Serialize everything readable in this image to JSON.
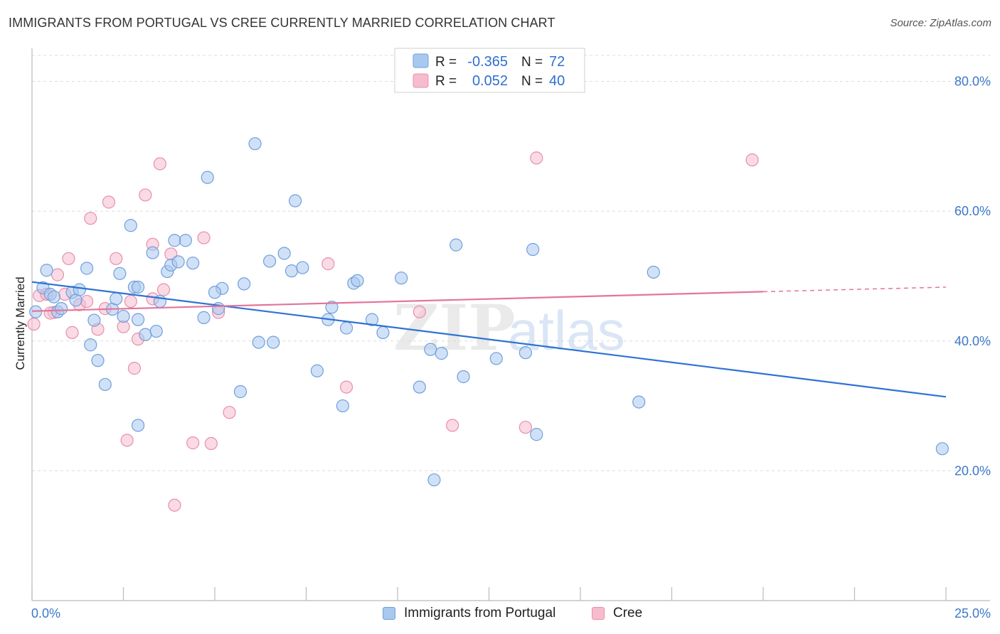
{
  "header": {
    "title": "IMMIGRANTS FROM PORTUGAL VS CREE CURRENTLY MARRIED CORRELATION CHART",
    "source": "Source: ZipAtlas.com"
  },
  "watermark": {
    "part1": "ZIP",
    "part2": "atlas"
  },
  "colors": {
    "blue_fill": "#a9c8f0",
    "blue_stroke": "#6f9fdc",
    "blue_line": "#2f72d4",
    "pink_fill": "#f6bccd",
    "pink_stroke": "#e88fab",
    "pink_line": "#e4749a",
    "tick_text": "#3d78c8",
    "grid": "#dcdcdc"
  },
  "legend": {
    "r_label": "R =",
    "n_label": "N =",
    "rows": [
      {
        "r": "-0.365",
        "n": "72"
      },
      {
        "r": "0.052",
        "n": "40"
      }
    ]
  },
  "bottom_legend": [
    "Immigrants from Portugal",
    "Cree"
  ],
  "chart_data": {
    "type": "scatter",
    "title": "IMMIGRANTS FROM PORTUGAL VS CREE CURRENTLY MARRIED CORRELATION CHART",
    "xlabel": "",
    "ylabel": "Currently Married",
    "xlim": [
      0,
      25
    ],
    "ylim": [
      0,
      84
    ],
    "x_tick_labels": [
      "0.0%",
      "25.0%"
    ],
    "y_ticks": [
      20,
      40,
      60,
      80
    ],
    "y_tick_labels": [
      "20.0%",
      "40.0%",
      "60.0%",
      "80.0%"
    ],
    "grid": true,
    "legend_position": "top-center",
    "series": [
      {
        "name": "Immigrants from Portugal",
        "r": -0.365,
        "n": 72,
        "trend": {
          "x": [
            0,
            25
          ],
          "y": [
            49.1,
            31.4
          ]
        },
        "points": [
          [
            0.1,
            44.5
          ],
          [
            0.3,
            48.2
          ],
          [
            0.4,
            50.9
          ],
          [
            0.5,
            47.2
          ],
          [
            0.7,
            44.5
          ],
          [
            0.8,
            45.0
          ],
          [
            1.1,
            47.5
          ],
          [
            1.2,
            46.3
          ],
          [
            1.5,
            51.2
          ],
          [
            1.7,
            43.2
          ],
          [
            1.8,
            37.0
          ],
          [
            1.6,
            39.4
          ],
          [
            2.0,
            33.3
          ],
          [
            2.2,
            44.9
          ],
          [
            2.3,
            46.5
          ],
          [
            2.4,
            50.4
          ],
          [
            2.5,
            43.8
          ],
          [
            2.7,
            57.8
          ],
          [
            2.8,
            48.3
          ],
          [
            2.9,
            48.3
          ],
          [
            3.1,
            41.0
          ],
          [
            3.3,
            53.6
          ],
          [
            3.4,
            41.5
          ],
          [
            3.5,
            46.1
          ],
          [
            3.7,
            50.7
          ],
          [
            3.8,
            51.7
          ],
          [
            3.9,
            55.5
          ],
          [
            4.2,
            55.5
          ],
          [
            4.4,
            52.0
          ],
          [
            4.7,
            43.6
          ],
          [
            4.8,
            65.2
          ],
          [
            5.1,
            45.0
          ],
          [
            5.2,
            48.1
          ],
          [
            5.8,
            48.8
          ],
          [
            5.7,
            32.2
          ],
          [
            6.1,
            70.4
          ],
          [
            6.2,
            39.8
          ],
          [
            6.5,
            52.3
          ],
          [
            6.6,
            39.8
          ],
          [
            6.9,
            53.5
          ],
          [
            7.1,
            50.8
          ],
          [
            7.4,
            51.3
          ],
          [
            7.2,
            61.6
          ],
          [
            7.8,
            35.4
          ],
          [
            8.1,
            43.3
          ],
          [
            8.2,
            45.2
          ],
          [
            8.5,
            30.0
          ],
          [
            8.6,
            42.0
          ],
          [
            8.8,
            48.9
          ],
          [
            8.9,
            49.3
          ],
          [
            9.3,
            43.3
          ],
          [
            9.6,
            41.3
          ],
          [
            10.1,
            49.7
          ],
          [
            10.6,
            32.9
          ],
          [
            10.9,
            38.7
          ],
          [
            11.2,
            38.1
          ],
          [
            11.6,
            54.8
          ],
          [
            11.8,
            34.5
          ],
          [
            12.7,
            37.3
          ],
          [
            13.5,
            38.2
          ],
          [
            13.7,
            54.1
          ],
          [
            13.8,
            25.6
          ],
          [
            11.0,
            18.6
          ],
          [
            16.6,
            30.6
          ],
          [
            17.0,
            50.6
          ],
          [
            0.6,
            46.8
          ],
          [
            1.3,
            47.9
          ],
          [
            2.9,
            27.0
          ],
          [
            4.0,
            52.2
          ],
          [
            5.0,
            47.5
          ],
          [
            24.9,
            23.4
          ],
          [
            2.9,
            43.3
          ]
        ]
      },
      {
        "name": "Cree",
        "r": 0.052,
        "n": 40,
        "trend": {
          "x": [
            0,
            20
          ],
          "y": [
            44.6,
            47.6
          ],
          "extended_x": [
            20,
            25
          ],
          "extended_y": [
            47.6,
            48.3
          ]
        },
        "points": [
          [
            0.05,
            42.6
          ],
          [
            0.2,
            47.0
          ],
          [
            0.4,
            47.2
          ],
          [
            0.6,
            44.4
          ],
          [
            0.7,
            50.2
          ],
          [
            0.9,
            47.2
          ],
          [
            1.0,
            52.7
          ],
          [
            1.1,
            41.3
          ],
          [
            1.3,
            45.6
          ],
          [
            1.5,
            46.1
          ],
          [
            1.6,
            58.9
          ],
          [
            1.8,
            41.8
          ],
          [
            2.0,
            45.0
          ],
          [
            2.1,
            61.4
          ],
          [
            2.3,
            52.7
          ],
          [
            2.5,
            42.2
          ],
          [
            2.6,
            24.7
          ],
          [
            2.7,
            46.1
          ],
          [
            2.8,
            35.8
          ],
          [
            2.9,
            40.3
          ],
          [
            3.1,
            62.5
          ],
          [
            3.3,
            54.9
          ],
          [
            3.5,
            67.3
          ],
          [
            3.6,
            47.9
          ],
          [
            3.8,
            53.4
          ],
          [
            3.9,
            14.7
          ],
          [
            4.4,
            24.3
          ],
          [
            4.7,
            55.9
          ],
          [
            4.9,
            24.2
          ],
          [
            5.1,
            44.4
          ],
          [
            5.4,
            29.0
          ],
          [
            8.1,
            51.9
          ],
          [
            8.6,
            32.9
          ],
          [
            10.6,
            44.5
          ],
          [
            11.5,
            27.0
          ],
          [
            13.5,
            26.7
          ],
          [
            13.8,
            68.2
          ],
          [
            19.7,
            67.9
          ],
          [
            0.5,
            44.3
          ],
          [
            3.3,
            46.5
          ]
        ]
      }
    ]
  }
}
